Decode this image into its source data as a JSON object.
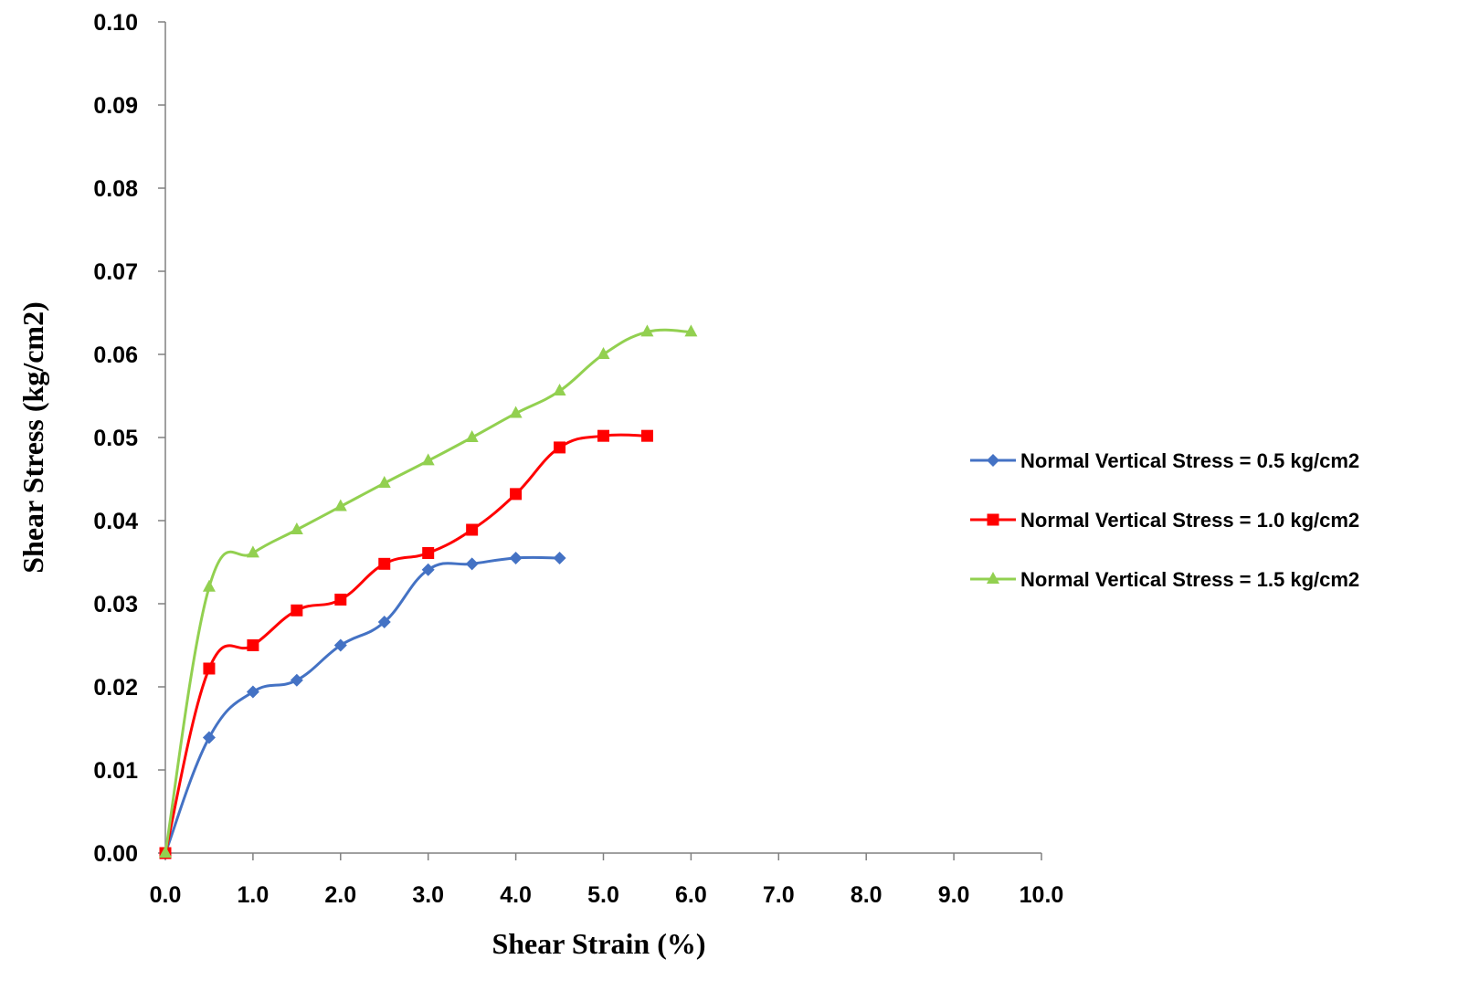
{
  "chart_data": {
    "type": "line",
    "xlabel": "Shear Strain (%)",
    "ylabel": "Shear Stress (kg/cm2)",
    "xlim": [
      0,
      10
    ],
    "ylim": [
      0,
      0.1
    ],
    "x_ticks": [
      "0.0",
      "1.0",
      "2.0",
      "3.0",
      "4.0",
      "5.0",
      "6.0",
      "7.0",
      "8.0",
      "9.0",
      "10.0"
    ],
    "y_ticks": [
      "0.00",
      "0.01",
      "0.02",
      "0.03",
      "0.04",
      "0.05",
      "0.06",
      "0.07",
      "0.08",
      "0.09",
      "0.10"
    ],
    "grid": false,
    "legend_position": "right",
    "series": [
      {
        "name": "Normal Vertical Stress = 0.5 kg/cm2",
        "color": "#4472C4",
        "marker": "diamond",
        "x": [
          0,
          0.5,
          1.0,
          1.5,
          2.0,
          2.5,
          3.0,
          3.5,
          4.0,
          4.5
        ],
        "y": [
          0,
          0.0139,
          0.0194,
          0.0208,
          0.025,
          0.0278,
          0.0341,
          0.0348,
          0.0355,
          0.0355
        ]
      },
      {
        "name": "Normal Vertical Stress = 1.0 kg/cm2",
        "color": "#FF0000",
        "marker": "square",
        "x": [
          0,
          0.5,
          1.0,
          1.5,
          2.0,
          2.5,
          3.0,
          3.5,
          4.0,
          4.5,
          5.0,
          5.5
        ],
        "y": [
          0,
          0.0222,
          0.025,
          0.0292,
          0.0305,
          0.0348,
          0.0361,
          0.0389,
          0.0432,
          0.0488,
          0.0502,
          0.0502
        ]
      },
      {
        "name": "Normal Vertical Stress = 1.5 kg/cm2",
        "color": "#92D050",
        "marker": "triangle",
        "x": [
          0,
          0.5,
          1.0,
          1.5,
          2.0,
          2.5,
          3.0,
          3.5,
          4.0,
          4.5,
          5.0,
          5.5,
          6.0
        ],
        "y": [
          0,
          0.032,
          0.0361,
          0.0389,
          0.0417,
          0.0445,
          0.0472,
          0.05,
          0.0529,
          0.0556,
          0.06,
          0.0627,
          0.0627
        ]
      }
    ]
  }
}
